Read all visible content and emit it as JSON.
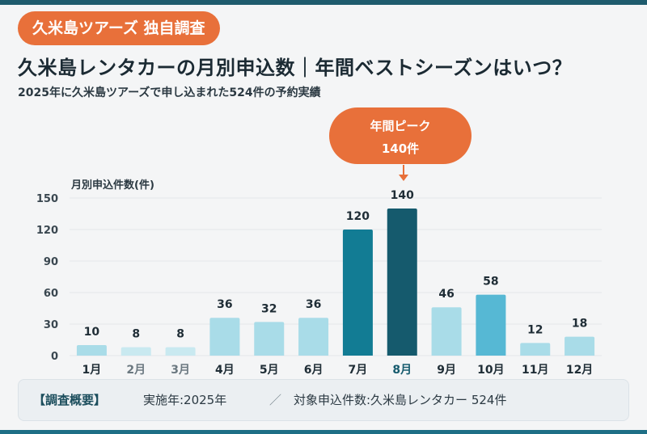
{
  "badge": "久米島ツアーズ 独自調査",
  "title": "久米島レンタカーの月別申込数｜年間ベストシーズンはいつ？",
  "subtitle": "2025年に久米島ツアーズで申し込まれた524件の予約実績",
  "callout": {
    "title": "年間ピーク",
    "value": "140件"
  },
  "summary": {
    "label": "【調査概要】",
    "year": "実施年:2025年",
    "separator": "／",
    "target": "対象申込件数:久米島レンタカー 524件"
  },
  "colors": {
    "accent": "#e8703a",
    "peak": "#155a6d",
    "high": "#127c94",
    "medium": "#56b8d4",
    "low": "#a9dce8",
    "lowest": "#c9e9f0"
  },
  "chart_data": {
    "type": "bar",
    "ylabel": "月別申込件数(件)",
    "ylim": [
      0,
      150
    ],
    "yticks": [
      0,
      30,
      60,
      90,
      120,
      150
    ],
    "grid": true,
    "categories": [
      "1月",
      "2月",
      "3月",
      "4月",
      "5月",
      "6月",
      "7月",
      "8月",
      "9月",
      "10月",
      "11月",
      "12月"
    ],
    "values": [
      10,
      8,
      8,
      36,
      32,
      36,
      120,
      140,
      46,
      58,
      12,
      18
    ],
    "data_labels": [
      "10",
      "8",
      "8",
      "36",
      "32",
      "36",
      "120",
      "140",
      "46",
      "58",
      "12",
      "18"
    ],
    "bar_colors": [
      "#a9dce8",
      "#c9e9f0",
      "#c9e9f0",
      "#a9dce8",
      "#a9dce8",
      "#a9dce8",
      "#127c94",
      "#155a6d",
      "#a9dce8",
      "#56b8d4",
      "#a9dce8",
      "#a9dce8"
    ],
    "highlight_index": 7
  }
}
